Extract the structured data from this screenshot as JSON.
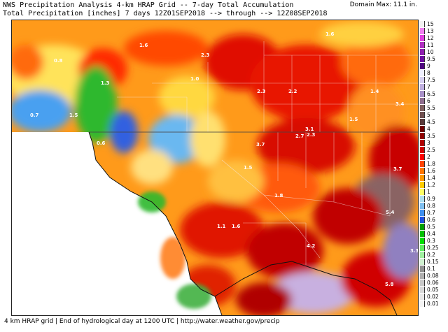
{
  "header": {
    "title_line1": "NWS Precipitation Analysis 4-km HRAP Grid -- 7-day Total Accumulation",
    "title_line2": "Total Precipitation [inches] 7 days 12Z01SEP2018 --> through --> 12Z08SEP2018",
    "domain_max": "Domain Max: 11.1 in."
  },
  "footer": {
    "text": "4 km HRAP grid | End of hydrological day at 1200 UTC | http://water.weather.gov/precip"
  },
  "legend": {
    "items": [
      {
        "label": "15",
        "color": "#f2f2f2"
      },
      {
        "label": "13",
        "color": "#f07ff0"
      },
      {
        "label": "12",
        "color": "#e040e0"
      },
      {
        "label": "11",
        "color": "#b030c0"
      },
      {
        "label": "10",
        "color": "#9020b0"
      },
      {
        "label": "9.5",
        "color": "#7010a0"
      },
      {
        "label": "9",
        "color": "#500880"
      },
      {
        "label": "8",
        "color": "#f0f0ff"
      },
      {
        "label": "7.5",
        "color": "#d8d0f0"
      },
      {
        "label": "7",
        "color": "#c0b0e0"
      },
      {
        "label": "6.5",
        "color": "#a890c8"
      },
      {
        "label": "6",
        "color": "#906f90"
      },
      {
        "label": "5.5",
        "color": "#806060"
      },
      {
        "label": "5",
        "color": "#705050"
      },
      {
        "label": "4.5",
        "color": "#5a3a3a"
      },
      {
        "label": "4",
        "color": "#700000"
      },
      {
        "label": "3.5",
        "color": "#900000"
      },
      {
        "label": "3",
        "color": "#b00000"
      },
      {
        "label": "2.5",
        "color": "#d00000"
      },
      {
        "label": "2",
        "color": "#ff0000"
      },
      {
        "label": "1.8",
        "color": "#ff4400"
      },
      {
        "label": "1.6",
        "color": "#ff7700"
      },
      {
        "label": "1.4",
        "color": "#ff9900"
      },
      {
        "label": "1.2",
        "color": "#ffcc00"
      },
      {
        "label": "1",
        "color": "#ffff66"
      },
      {
        "label": "0.9",
        "color": "#b0e0f0"
      },
      {
        "label": "0.8",
        "color": "#80c0f0"
      },
      {
        "label": "0.7",
        "color": "#4090f0"
      },
      {
        "label": "0.6",
        "color": "#2050e0"
      },
      {
        "label": "0.5",
        "color": "#00a000"
      },
      {
        "label": "0.4",
        "color": "#00c000"
      },
      {
        "label": "0.3",
        "color": "#00e000"
      },
      {
        "label": "0.25",
        "color": "#60f060"
      },
      {
        "label": "0.2",
        "color": "#a0f0a0"
      },
      {
        "label": "0.15",
        "color": "#d0f0d0"
      },
      {
        "label": "0.1",
        "color": "#909090"
      },
      {
        "label": "0.08",
        "color": "#b0b0b0"
      },
      {
        "label": "0.06",
        "color": "#c8c8c8"
      },
      {
        "label": "0.05",
        "color": "#d8d8d8"
      },
      {
        "label": "0.02",
        "color": "#e8e8e8"
      },
      {
        "label": "0.01",
        "color": "#f4f4f4"
      }
    ]
  },
  "map_labels": [
    {
      "text": "1.6"
    },
    {
      "text": "0.8"
    },
    {
      "text": "2.3"
    },
    {
      "text": "1.6"
    },
    {
      "text": "1.3"
    },
    {
      "text": "1.0"
    },
    {
      "text": "0.7"
    },
    {
      "text": "1.5"
    },
    {
      "text": "2.3"
    },
    {
      "text": "2.2"
    },
    {
      "text": "1.4"
    },
    {
      "text": "1.5"
    },
    {
      "text": "3.4"
    },
    {
      "text": "3.1"
    },
    {
      "text": "2.7"
    },
    {
      "text": "2.3"
    },
    {
      "text": "3.7"
    },
    {
      "text": "0.6"
    },
    {
      "text": "1.5"
    },
    {
      "text": "3.7"
    },
    {
      "text": "1.8"
    },
    {
      "text": "5.4"
    },
    {
      "text": "1.1"
    },
    {
      "text": "1.6"
    },
    {
      "text": "4.2"
    },
    {
      "text": "3.3"
    },
    {
      "text": "5.8"
    }
  ]
}
